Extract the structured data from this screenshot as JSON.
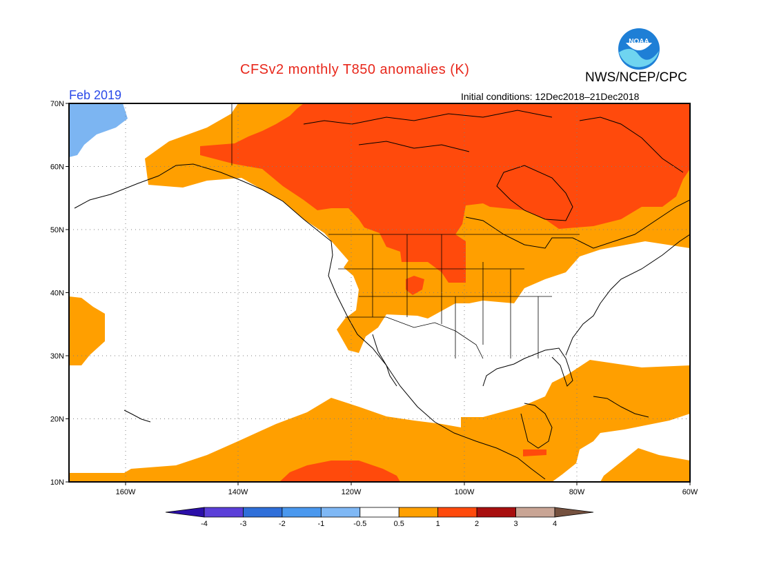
{
  "header": {
    "title": "CFSv2 monthly T850 anomalies (K)",
    "org": "NWS/NCEP/CPC",
    "month": "Feb 2019",
    "initial_conditions": "Initial conditions: 12Dec2018–21Dec2018",
    "logo_text": "NOAA"
  },
  "map": {
    "lat_labels": [
      "70N",
      "60N",
      "50N",
      "40N",
      "30N",
      "20N",
      "10N"
    ],
    "lon_labels": [
      "160W",
      "140W",
      "120W",
      "100W",
      "80W",
      "60W"
    ],
    "extent": {
      "lon": [
        -170,
        -60
      ],
      "lat": [
        10,
        70
      ]
    }
  },
  "colorbar": {
    "labels": [
      "-4",
      "-3",
      "-2",
      "-1",
      "-0.5",
      "0.5",
      "1",
      "2",
      "3",
      "4"
    ],
    "colors": [
      "#2b0fa8",
      "#5b3fd8",
      "#2f6fd9",
      "#4a98ee",
      "#7fb8f5",
      "#ffffff",
      "#ffa000",
      "#ff4a0c",
      "#a80f0f",
      "#c9a595",
      "#75513f"
    ]
  },
  "colors": {
    "anomaly_1": "#ff9f00",
    "anomaly_2": "#ff4a0c",
    "cold_1": "#7cb5f2",
    "title": "#e8271b",
    "month": "#2a49e8"
  }
}
